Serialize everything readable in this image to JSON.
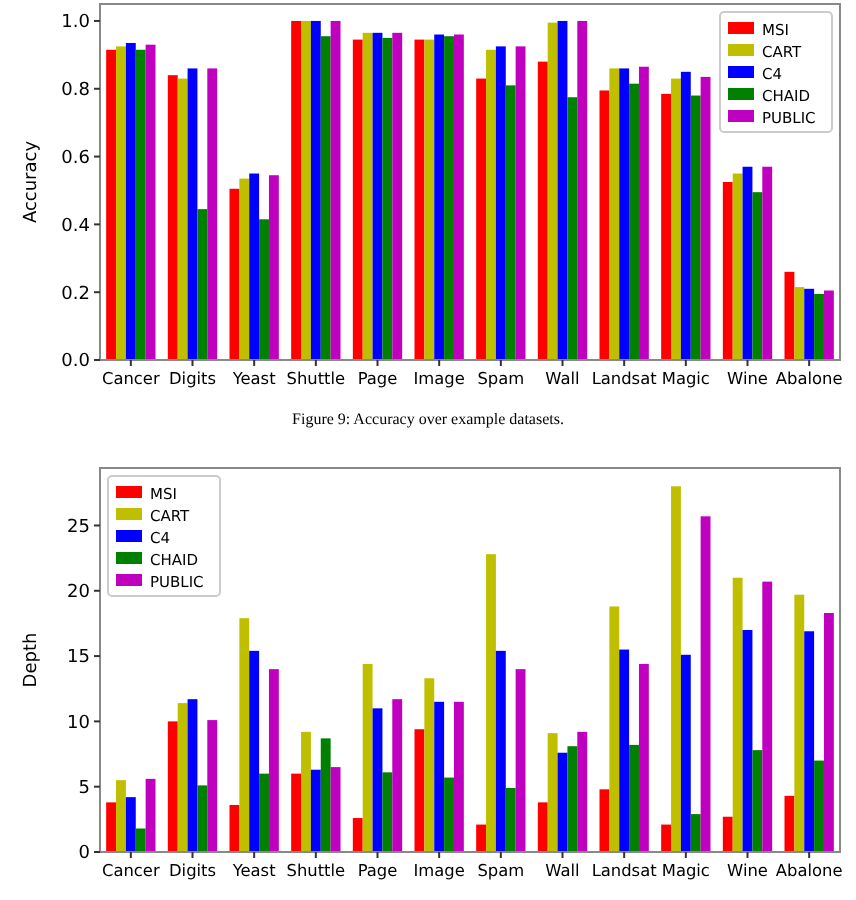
{
  "chart_data": [
    {
      "type": "bar",
      "ylabel": "Accuracy",
      "categories": [
        "Cancer",
        "Digits",
        "Yeast",
        "Shuttle",
        "Page",
        "Image",
        "Spam",
        "Wall",
        "Landsat",
        "Magic",
        "Wine",
        "Abalone"
      ],
      "series": [
        {
          "name": "MSI",
          "color": "#ff0000",
          "values": [
            0.915,
            0.84,
            0.505,
            1.0,
            0.945,
            0.945,
            0.83,
            0.88,
            0.795,
            0.785,
            0.525,
            0.26
          ]
        },
        {
          "name": "CART",
          "color": "#bfbf00",
          "values": [
            0.925,
            0.83,
            0.535,
            1.0,
            0.965,
            0.945,
            0.915,
            0.995,
            0.86,
            0.83,
            0.55,
            0.215
          ]
        },
        {
          "name": "C4",
          "color": "#0000ff",
          "values": [
            0.935,
            0.86,
            0.55,
            1.0,
            0.965,
            0.96,
            0.925,
            1.0,
            0.86,
            0.85,
            0.57,
            0.21
          ]
        },
        {
          "name": "CHAID",
          "color": "#008000",
          "values": [
            0.915,
            0.445,
            0.415,
            0.955,
            0.95,
            0.955,
            0.81,
            0.775,
            0.815,
            0.78,
            0.495,
            0.195
          ]
        },
        {
          "name": "PUBLIC",
          "color": "#bf00bf",
          "values": [
            0.93,
            0.86,
            0.545,
            1.0,
            0.965,
            0.96,
            0.925,
            1.0,
            0.865,
            0.835,
            0.57,
            0.205
          ]
        }
      ],
      "ylim": [
        0,
        1.05
      ],
      "yticks": [
        {
          "value": 0,
          "label": "0.0"
        },
        {
          "value": 0.2,
          "label": "0.2"
        },
        {
          "value": 0.4,
          "label": "0.4"
        },
        {
          "value": 0.6,
          "label": "0.6"
        },
        {
          "value": 0.8,
          "label": "0.8"
        },
        {
          "value": 1,
          "label": "1.0"
        }
      ],
      "legend": "top right",
      "annotations": [
        "Figure 9: Accuracy over example datasets."
      ]
    },
    {
      "type": "bar",
      "ylabel": "Depth",
      "categories": [
        "Cancer",
        "Digits",
        "Yeast",
        "Shuttle",
        "Page",
        "Image",
        "Spam",
        "Wall",
        "Landsat",
        "Magic",
        "Wine",
        "Abalone"
      ],
      "series": [
        {
          "name": "MSI",
          "color": "#ff0000",
          "values": [
            3.8,
            10.0,
            3.6,
            6.0,
            2.6,
            9.4,
            2.1,
            3.8,
            4.8,
            2.1,
            2.7,
            4.3
          ]
        },
        {
          "name": "CART",
          "color": "#bfbf00",
          "values": [
            5.5,
            11.4,
            17.9,
            9.2,
            14.4,
            13.3,
            22.8,
            9.1,
            18.8,
            28.0,
            21.0,
            19.7
          ]
        },
        {
          "name": "C4",
          "color": "#0000ff",
          "values": [
            4.2,
            11.7,
            15.4,
            6.3,
            11.0,
            11.5,
            15.4,
            7.6,
            15.5,
            15.1,
            17.0,
            16.9
          ]
        },
        {
          "name": "CHAID",
          "color": "#008000",
          "values": [
            1.8,
            5.1,
            6.0,
            8.7,
            6.1,
            5.7,
            4.9,
            8.1,
            8.2,
            2.9,
            7.8,
            7.0
          ]
        },
        {
          "name": "PUBLIC",
          "color": "#bf00bf",
          "values": [
            5.6,
            10.1,
            14.0,
            6.5,
            11.7,
            11.5,
            14.0,
            9.2,
            14.4,
            25.7,
            20.7,
            18.3
          ]
        }
      ],
      "ylim": [
        0,
        29.4
      ],
      "yticks": [
        0,
        5,
        10,
        15,
        20,
        25
      ],
      "legend": "top left"
    }
  ]
}
